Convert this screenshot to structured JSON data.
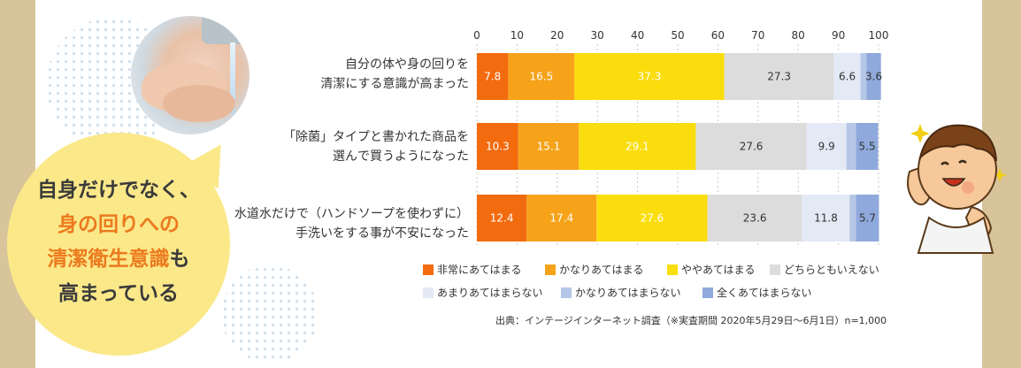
{
  "callout": {
    "line1": "自身だけでなく、",
    "line2": "身の回りへの",
    "line3_hl": "清潔衛生意識",
    "line3_rest": "も",
    "line4": "高まっている"
  },
  "chart_data": {
    "type": "bar",
    "stacked": true,
    "orientation": "horizontal",
    "categories": [
      "自分の体や身の回りを清潔にする意識が高まった",
      "「除菌」タイプと書かれた商品を選んで買うようになった",
      "水道水だけで（ハンドソープを使わずに）手洗いをする事が不安になった"
    ],
    "category_lines": [
      [
        "自分の体や身の回りを",
        "清潔にする意識が高まった"
      ],
      [
        "「除菌」タイプと書かれた商品を",
        "選んで買うようになった"
      ],
      [
        "水道水だけで（ハンドソープを使わずに）",
        "手洗いをする事が不安になった"
      ]
    ],
    "series": [
      {
        "name": "非常にあてはまる",
        "color": "#f26b0f",
        "values": [
          7.8,
          10.3,
          12.4
        ],
        "labels": [
          "7.8",
          "10.3",
          "12.4"
        ]
      },
      {
        "name": "かなりあてはまる",
        "color": "#f6a31a",
        "values": [
          16.5,
          15.1,
          17.4
        ],
        "labels": [
          "16.5",
          "15.1",
          "17.4"
        ]
      },
      {
        "name": "ややあてはまる",
        "color": "#fadd0c",
        "values": [
          37.3,
          29.1,
          27.6
        ],
        "labels": [
          "37.3",
          "29.1",
          "27.6"
        ]
      },
      {
        "name": "どちらともいえない",
        "color": "#dcdcdc",
        "values": [
          27.3,
          27.6,
          23.6
        ],
        "labels": [
          "27.3",
          "27.6",
          "23.6"
        ]
      },
      {
        "name": "あまりあてはまらない",
        "color": "#e3e9f5",
        "values": [
          6.6,
          9.9,
          11.8
        ],
        "labels": [
          "6.6",
          "9.9",
          "11.8"
        ]
      },
      {
        "name": "かなりあてはまらない",
        "color": "#b5c6e6",
        "values": [
          1.5,
          2.4,
          1.6
        ],
        "labels": [
          "",
          "",
          ""
        ]
      },
      {
        "name": "全くあてはまらない",
        "color": "#8fa9dc",
        "values": [
          3.6,
          5.5,
          5.7
        ],
        "labels": [
          "3.6",
          "5.5",
          "5.7"
        ]
      }
    ],
    "xlim": [
      0,
      100
    ],
    "xticks": [
      0,
      10,
      20,
      30,
      40,
      50,
      60,
      70,
      80,
      90,
      100
    ],
    "grid": true,
    "legend_position": "bottom"
  },
  "source": "出典：インテージインターネット調査（※実査期間 2020年5月29日〜6月1日）n=1,000"
}
